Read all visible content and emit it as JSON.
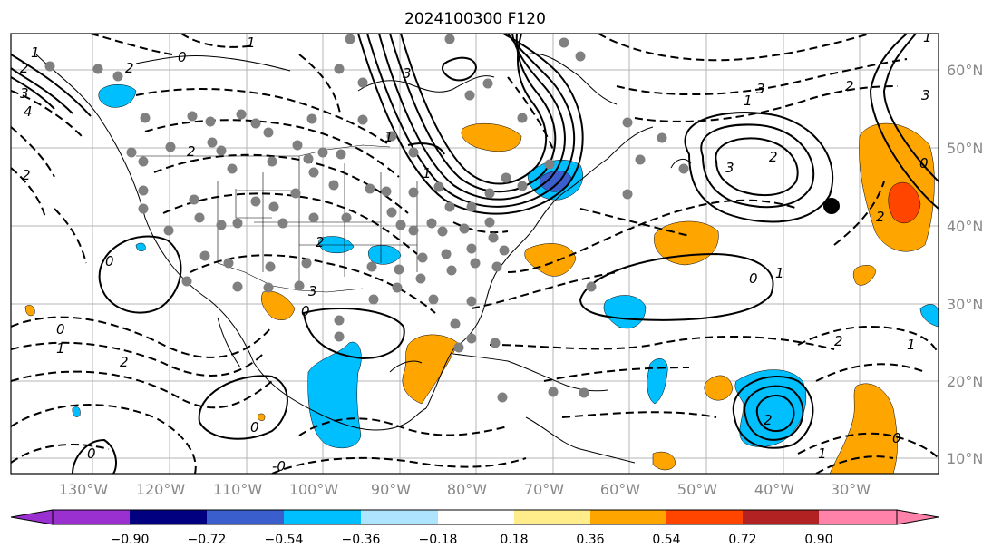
{
  "title": "2024100300 F120",
  "latitude_labels": [
    "60°N",
    "50°N",
    "40°N",
    "30°N",
    "20°N",
    "10°N"
  ],
  "longitude_labels": [
    "130°W",
    "120°W",
    "110°W",
    "100°W",
    "90°W",
    "80°W",
    "70°W",
    "60°W",
    "50°W",
    "40°W",
    "30°W"
  ],
  "colorbar": {
    "ticks": [
      "−0.90",
      "−0.72",
      "−0.54",
      "−0.36",
      "−0.18",
      "0.18",
      "0.36",
      "0.54",
      "0.72",
      "0.90"
    ],
    "colors": [
      "#9b30d0",
      "#000080",
      "#3a5fcd",
      "#00bfff",
      "#afe4ff",
      "#ffffff",
      "#ffec8b",
      "#ffa500",
      "#ff4500",
      "#b22222",
      "#ff82ab"
    ]
  },
  "fill_colors": {
    "negative": "#00bfff",
    "negative_strong": "#3a5fcd",
    "positive": "#ffa500",
    "positive_strong": "#ff4500"
  },
  "contour_labels": [
    "1",
    "2",
    "3",
    "4",
    "2",
    "0",
    "1",
    "2",
    "3",
    "1",
    "1",
    "2",
    "3",
    "0",
    "0",
    "1",
    "2",
    "0",
    "0",
    "-0",
    "0",
    "1",
    "2",
    "3",
    "3",
    "2",
    "0",
    "1",
    "2",
    "1",
    "2",
    "0",
    "3",
    "1",
    "2",
    "0",
    "1",
    "2"
  ],
  "marker_color": "#808080",
  "storm_marker_color": "#000000"
}
